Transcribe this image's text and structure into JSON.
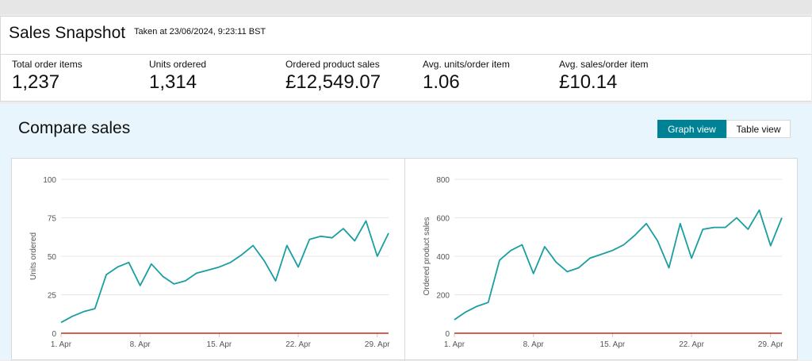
{
  "snapshot": {
    "title": "Sales Snapshot",
    "taken": "Taken at 23/06/2024, 9:23:11 BST",
    "metrics": [
      {
        "label": "Total order items",
        "value": "1,237"
      },
      {
        "label": "Units ordered",
        "value": "1,314"
      },
      {
        "label": "Ordered product sales",
        "value": "£12,549.07"
      },
      {
        "label": "Avg. units/order item",
        "value": "1.06"
      },
      {
        "label": "Avg. sales/order item",
        "value": "£10.14"
      }
    ]
  },
  "compare": {
    "title": "Compare sales",
    "graph_view_label": "Graph view",
    "table_view_label": "Table view"
  },
  "colors": {
    "series": "#1a9ea1",
    "baseline": "#cc2a1e",
    "accent": "#008296"
  },
  "chart_data": [
    {
      "type": "line",
      "ylabel": "Units ordered",
      "ylim": [
        0,
        100
      ],
      "yticks": [
        0,
        25,
        50,
        75,
        100
      ],
      "xticks": [
        1,
        8,
        15,
        22,
        29
      ],
      "xtick_labels": [
        "1. Apr",
        "8. Apr",
        "15. Apr",
        "22. Apr",
        "29. Apr"
      ],
      "xlim": [
        1,
        30
      ],
      "grid": true,
      "series": [
        {
          "x": [
            1,
            2,
            3,
            4,
            5,
            6,
            7,
            8,
            9,
            10,
            11,
            12,
            13,
            14,
            15,
            16,
            17,
            18,
            19,
            20,
            21,
            22,
            23,
            24,
            25,
            26,
            27,
            28,
            29,
            30
          ],
          "values": [
            7,
            11,
            14,
            16,
            38,
            43,
            46,
            31,
            45,
            37,
            32,
            34,
            39,
            41,
            43,
            46,
            51,
            57,
            47,
            34,
            57,
            43,
            61,
            63,
            62,
            68,
            60,
            73,
            50,
            65
          ]
        },
        {
          "x": [
            1,
            30
          ],
          "values": [
            0,
            0
          ]
        }
      ]
    },
    {
      "type": "line",
      "ylabel": "Ordered product sales",
      "ylim": [
        0,
        800
      ],
      "yticks": [
        0,
        200,
        400,
        600,
        800
      ],
      "xticks": [
        1,
        8,
        15,
        22,
        29
      ],
      "xtick_labels": [
        "1. Apr",
        "8. Apr",
        "15. Apr",
        "22. Apr",
        "29. Apr"
      ],
      "xlim": [
        1,
        30
      ],
      "grid": true,
      "series": [
        {
          "x": [
            1,
            2,
            3,
            4,
            5,
            6,
            7,
            8,
            9,
            10,
            11,
            12,
            13,
            14,
            15,
            16,
            17,
            18,
            19,
            20,
            21,
            22,
            23,
            24,
            25,
            26,
            27,
            28,
            29,
            30
          ],
          "values": [
            70,
            110,
            140,
            160,
            380,
            430,
            460,
            310,
            450,
            370,
            320,
            340,
            390,
            410,
            430,
            460,
            510,
            570,
            480,
            340,
            570,
            390,
            540,
            550,
            550,
            600,
            540,
            640,
            455,
            600
          ]
        },
        {
          "x": [
            1,
            30
          ],
          "values": [
            0,
            0
          ]
        }
      ]
    }
  ]
}
